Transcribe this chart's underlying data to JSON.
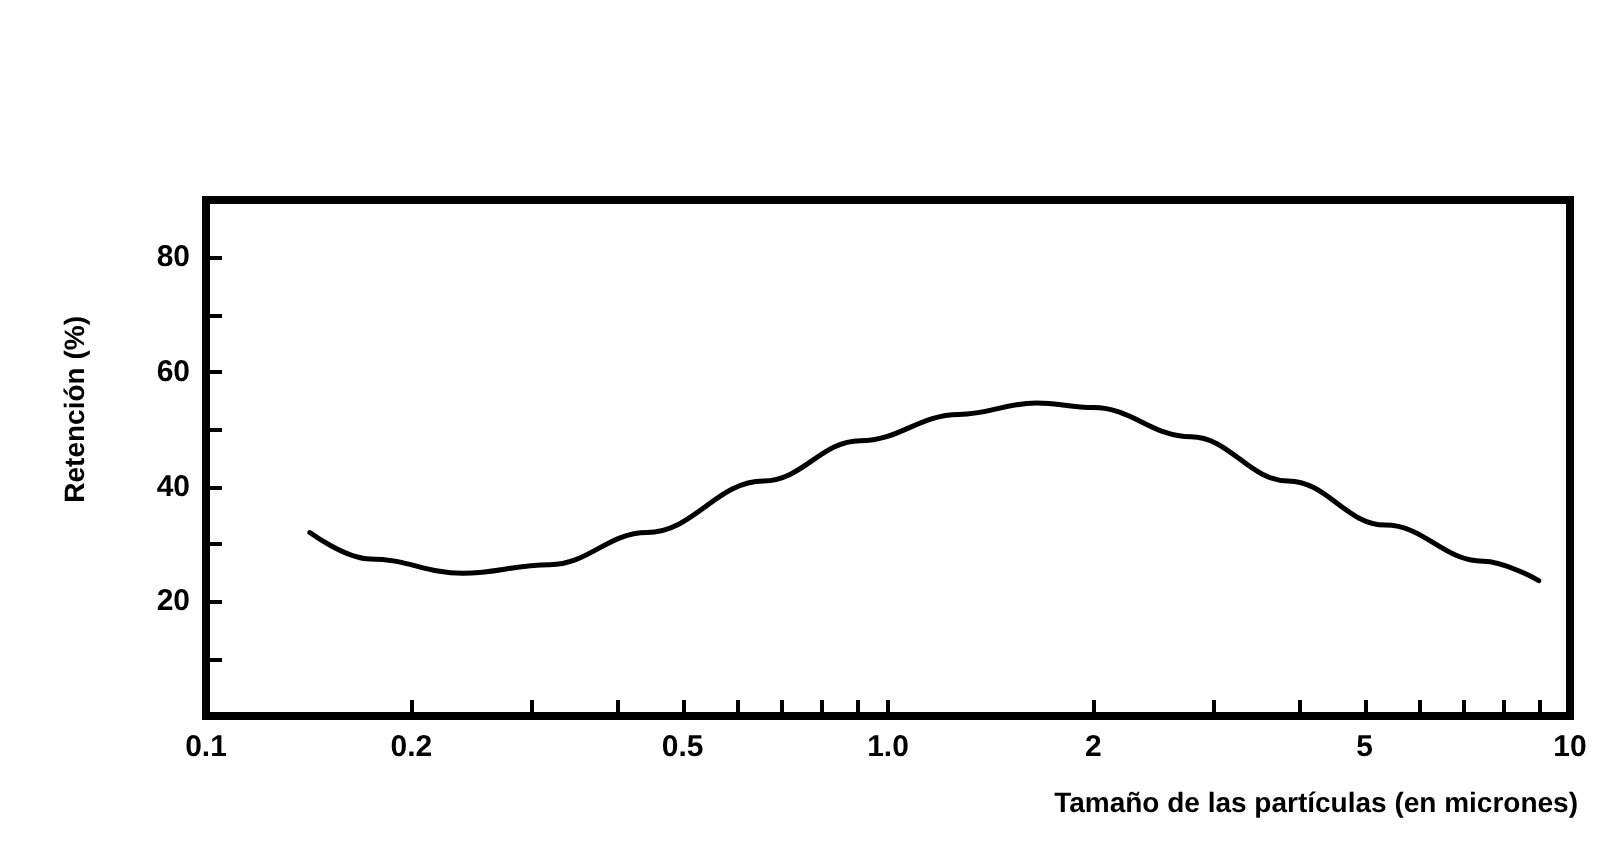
{
  "chart_data": {
    "type": "line",
    "xlabel": "Tamaño de las partículas (en micrones)",
    "ylabel": "Retención (%)",
    "log": "x",
    "xlim": [
      0.1,
      10
    ],
    "xticks": [
      0.1,
      0.2,
      {
        "value": 0.3,
        "label": null
      },
      {
        "value": 0.4,
        "label": null
      },
      0.5,
      {
        "value": 0.6,
        "label": null
      },
      {
        "value": 0.7,
        "label": null
      },
      {
        "value": 0.8,
        "label": null
      },
      {
        "value": 0.9,
        "label": null
      },
      {
        "value": 1,
        "label": "1.0"
      },
      2,
      {
        "value": 3,
        "label": null
      },
      {
        "value": 4,
        "label": null
      },
      5,
      {
        "value": 6,
        "label": null
      },
      {
        "value": 7,
        "label": null
      },
      {
        "value": 8,
        "label": null
      },
      {
        "value": 9,
        "label": null
      },
      10
    ],
    "ylim": [
      0,
      90
    ],
    "yticks": [
      {
        "value": 10,
        "label": null
      },
      20,
      {
        "value": 30,
        "label": null
      },
      40,
      {
        "value": 50,
        "label": null
      },
      60,
      {
        "value": 70,
        "label": null
      },
      80
    ],
    "grid": false,
    "marker": "none",
    "line_style": "solid",
    "series": [
      {
        "color": "#000000",
        "x": [
          0.142,
          0.174,
          0.238,
          0.319,
          0.443,
          0.657,
          0.91,
          1.27,
          1.65,
          2.0,
          2.78,
          3.86,
          5.36,
          7.45,
          9.0
        ],
        "values": [
          32,
          27.4,
          24.9,
          26.4,
          32,
          41,
          48,
          52.6,
          54.6,
          53.8,
          48.7,
          41,
          33.3,
          27,
          23.6
        ]
      }
    ]
  }
}
